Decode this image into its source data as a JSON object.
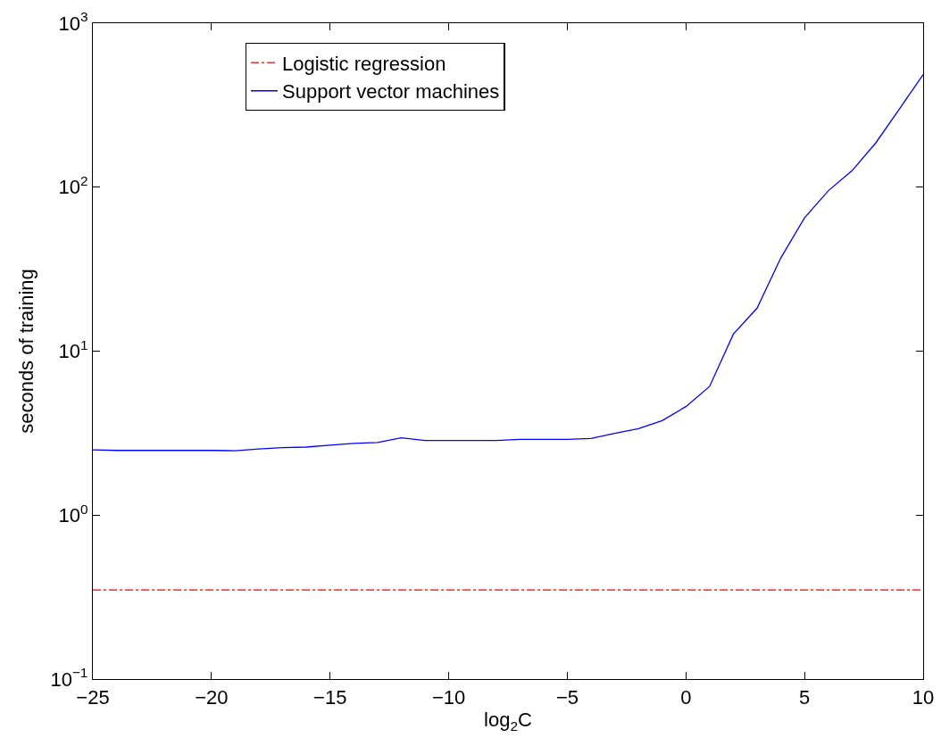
{
  "chart_data": {
    "type": "line",
    "xlabel": "log$_{2}$C",
    "ylabel": "seconds of training",
    "log": "y",
    "grid": false,
    "legend": "top",
    "marker": "none",
    "xlim": [
      -25,
      10
    ],
    "xticks": [
      {
        "value": -25,
        "label": "−25"
      },
      {
        "value": -20,
        "label": "−20"
      },
      {
        "value": -15,
        "label": "−15"
      },
      {
        "value": -10,
        "label": "−10"
      },
      {
        "value": -5,
        "label": "−5"
      },
      0,
      5,
      10
    ],
    "ylim": [
      0.1,
      1000
    ],
    "yticks": [
      {
        "value": 0.1,
        "label": "10$^{−1}$"
      },
      {
        "value": 1,
        "label": "10$^{0}$"
      },
      {
        "value": 10,
        "label": "10$^{1}$"
      },
      {
        "value": 100,
        "label": "10$^{2}$"
      },
      {
        "value": 1000,
        "label": "10$^{3}$"
      }
    ],
    "series": [
      {
        "name": "Logistic regression",
        "color": "#ff0000",
        "line_style": "dashdot",
        "x": [
          -25,
          10
        ],
        "values": [
          0.35,
          0.35
        ]
      },
      {
        "name": "Support vector machines",
        "color": "#0000ff",
        "line_style": "solid",
        "x": [
          -25,
          -24,
          -23,
          -22,
          -21,
          -20,
          -19,
          -18,
          -17,
          -16,
          -15,
          -14,
          -13,
          -12,
          -11,
          -10,
          -9,
          -8,
          -7,
          -6,
          -5,
          -4,
          -3,
          -2,
          -1,
          0,
          1,
          2,
          3,
          4,
          5,
          6,
          7,
          8,
          9,
          10
        ],
        "values": [
          2.5,
          2.48,
          2.48,
          2.48,
          2.48,
          2.48,
          2.47,
          2.53,
          2.58,
          2.6,
          2.67,
          2.74,
          2.77,
          2.96,
          2.85,
          2.85,
          2.85,
          2.85,
          2.9,
          2.9,
          2.9,
          2.93,
          3.15,
          3.37,
          3.77,
          4.59,
          6.1,
          12.7,
          18.3,
          37,
          65,
          95,
          126,
          186,
          300,
          486
        ]
      }
    ]
  }
}
